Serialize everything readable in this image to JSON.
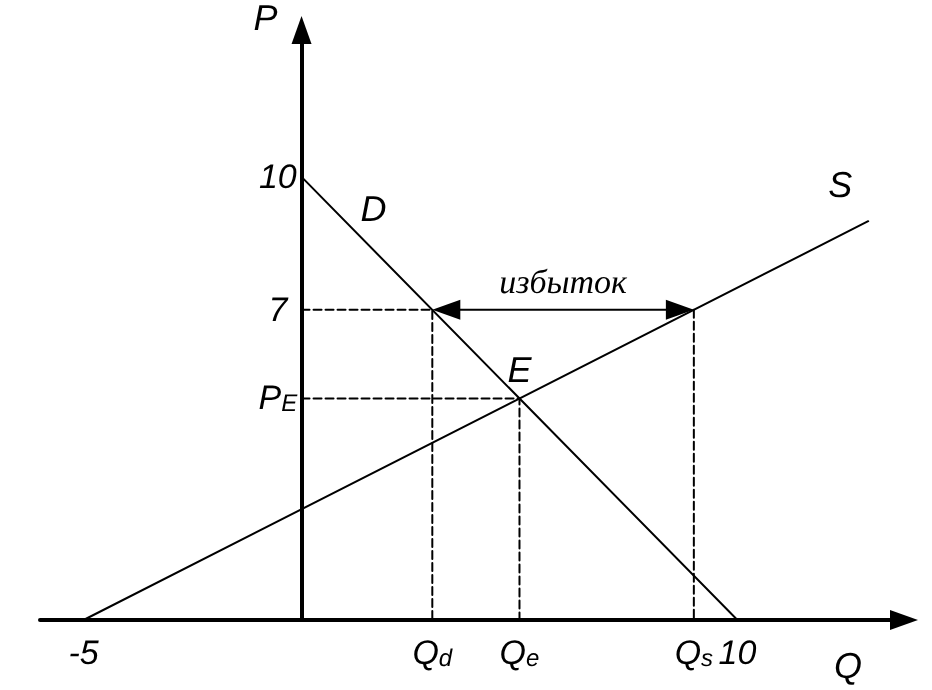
{
  "chart_data": {
    "type": "line",
    "xlabel": "Q",
    "ylabel": "P",
    "xlim": [
      -6,
      13.5
    ],
    "ylim": [
      0,
      13
    ],
    "xticks": [
      -5,
      {
        "value": 3,
        "label": "Q$_{d}$"
      },
      {
        "value": 5,
        "label": "Q$_{e}$"
      },
      {
        "value": 9,
        "label": "Q$_{s}$"
      },
      10
    ],
    "yticks": [
      {
        "value": 5,
        "label": "P$_{E}$"
      },
      7,
      10
    ],
    "series": [
      {
        "name": "D",
        "x": [
          0,
          10
        ],
        "values": [
          10,
          0
        ],
        "color": "#000000"
      },
      {
        "name": "S",
        "x": [
          -5,
          13
        ],
        "values": [
          0,
          9
        ],
        "color": "#000000"
      },
      {
        "x": [
          0,
          3,
          3
        ],
        "values": [
          7,
          7,
          0
        ],
        "color": "#000000",
        "line_style": "dashed"
      },
      {
        "x": [
          9,
          9
        ],
        "values": [
          7,
          0
        ],
        "color": "#000000",
        "line_style": "dashed"
      },
      {
        "x": [
          0,
          5,
          5
        ],
        "values": [
          5,
          5,
          0
        ],
        "color": "#000000",
        "line_style": "dashed"
      }
    ],
    "annotations": [
      {
        "text": "E",
        "x": 5,
        "y": 5
      },
      "избыток"
    ],
    "grid": false,
    "marker": "none",
    "line_style": "solid"
  }
}
